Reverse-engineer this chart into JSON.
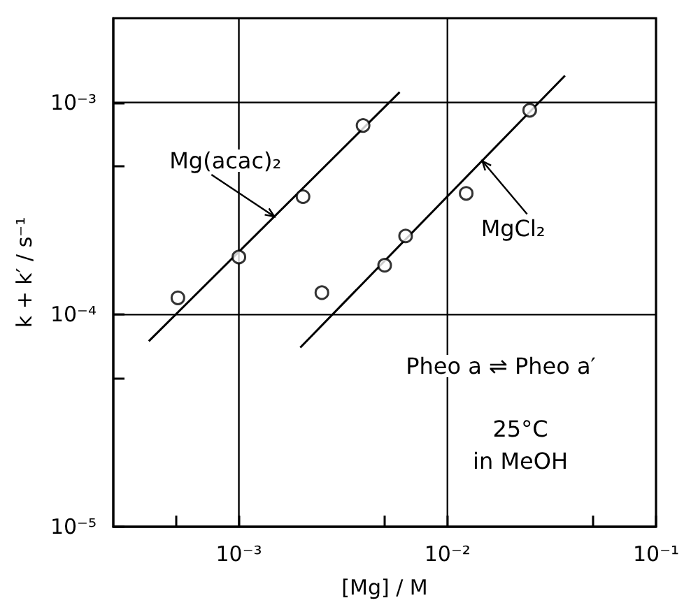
{
  "chart_data": {
    "type": "scatter",
    "xlabel": "[Mg] / M",
    "ylabel": "k + k′ / s⁻¹",
    "log": "xy",
    "grid": true,
    "marker": "circle",
    "xlim": [
      0.00025,
      0.1
    ],
    "ylim": [
      1e-05,
      0.0025
    ],
    "xticks": [
      {
        "value": 0.0005,
        "label": null
      },
      {
        "value": 0.001,
        "label": "10⁻³"
      },
      {
        "value": 0.005,
        "label": null
      },
      {
        "value": 0.01,
        "label": "10⁻²"
      },
      {
        "value": 0.05,
        "label": null
      },
      {
        "value": 0.1,
        "label": "10⁻¹"
      }
    ],
    "yticks": [
      {
        "value": 1e-05,
        "label": "10⁻⁵"
      },
      {
        "value": 5e-05,
        "label": null
      },
      {
        "value": 0.0001,
        "label": "10⁻⁴"
      },
      {
        "value": 0.0005,
        "label": null
      },
      {
        "value": 0.001,
        "label": "10⁻³"
      }
    ],
    "series": [
      {
        "color": "#000000",
        "x": [
          0.00051,
          0.001,
          0.00203,
          0.00394
        ],
        "values": [
          0.00012,
          0.000187,
          0.00036,
          0.00078
        ]
      },
      {
        "color": "#000000",
        "x": [
          0.0025,
          0.005,
          0.0063,
          0.0123,
          0.0248
        ],
        "values": [
          0.000127,
          0.000171,
          0.000235,
          0.000373,
          0.00092
        ]
      },
      {
        "type": "line",
        "color": "#000000",
        "marker": "none",
        "x": [
          0.00037,
          0.0059
        ],
        "values": [
          7.5e-05,
          0.00112
        ]
      },
      {
        "type": "line",
        "color": "#000000",
        "marker": "none",
        "x": [
          0.00197,
          0.0366
        ],
        "values": [
          7e-05,
          0.00134
        ]
      }
    ],
    "annotations": [
      {
        "text": "Mg(acac)₂",
        "x": 0.00148,
        "y": 0.00029
      },
      {
        "text": "MgCl₂",
        "x": 0.0147,
        "y": 0.00053
      },
      "Pheo a ⇌ Pheo a′",
      "25°C",
      "in MeOH"
    ]
  }
}
